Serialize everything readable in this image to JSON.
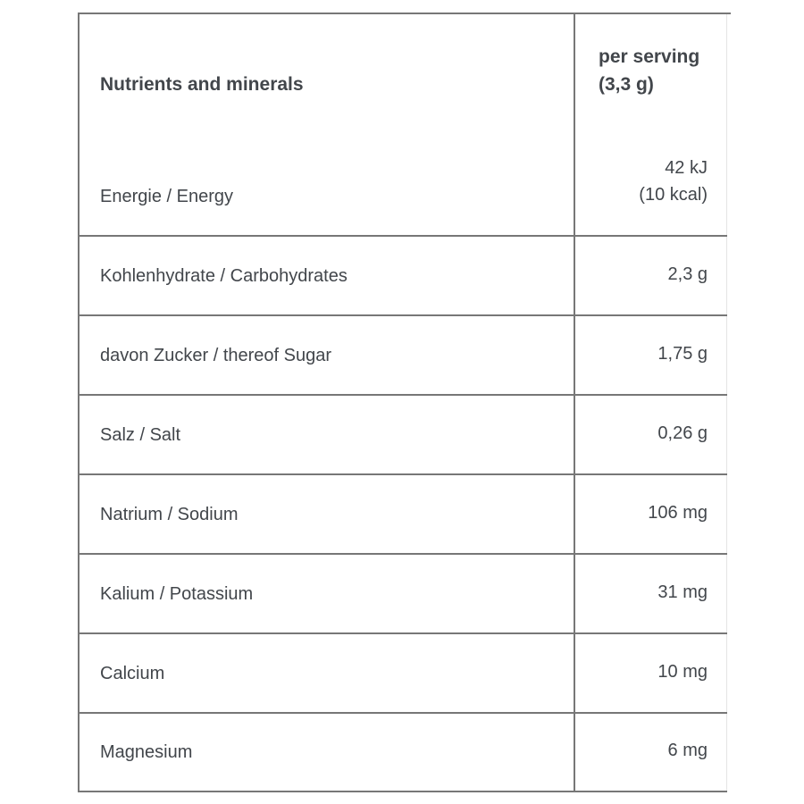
{
  "table": {
    "header": {
      "col1": "Nutrients and minerals",
      "col2_line1": "per serving",
      "col2_line2": "(3,3 g)"
    },
    "rows": [
      {
        "label": "Energie / Energy",
        "value_line1": "42 kJ",
        "value_line2": "(10 kcal)"
      },
      {
        "label": "Kohlenhydrate / Carbohydrates",
        "value": "2,3 g"
      },
      {
        "label": "davon Zucker / thereof Sugar",
        "value": "1,75 g"
      },
      {
        "label": "Salz / Salt",
        "value": "0,26 g"
      },
      {
        "label": "Natrium / Sodium",
        "value": "106 mg"
      },
      {
        "label": "Kalium / Potassium",
        "value": "31 mg"
      },
      {
        "label": "Calcium",
        "value": "10 mg"
      },
      {
        "label": "Magnesium",
        "value": "6 mg"
      }
    ],
    "colors": {
      "text": "#42464b",
      "grid_border": "#777777",
      "faint_right_border": "#e5e5e5",
      "background": "#ffffff"
    }
  }
}
